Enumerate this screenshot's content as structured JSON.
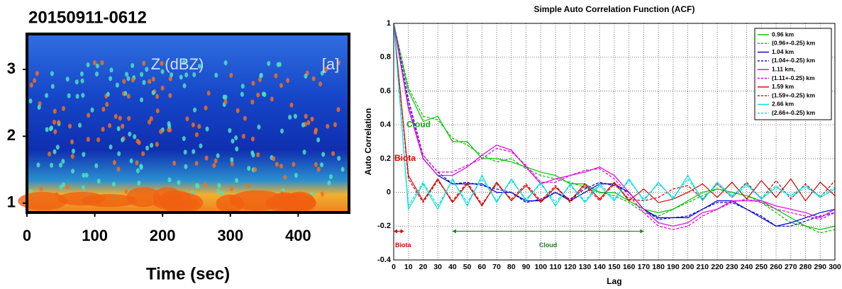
{
  "chart_data": [
    {
      "type": "image",
      "title": "20150911-0612",
      "xlabel": "Time (sec)",
      "annotations": [
        "Z (dBZ)",
        "[a]"
      ],
      "xlim": [
        0,
        475
      ],
      "xticks": [
        0,
        100,
        200,
        300,
        400
      ],
      "ylim": [
        0.86,
        3.53
      ],
      "yticks": [
        1,
        2,
        3
      ]
    },
    {
      "type": "line",
      "title": "Simple Auto Correlation Function (ACF)",
      "xlabel": "Lag",
      "ylabel": "Auto Correlation",
      "grid": true,
      "legend": "upper right",
      "annotations": [
        {
          "text": "Cloud",
          "color": "#20a020"
        },
        {
          "text": "Biota",
          "color": "#e00000"
        }
      ],
      "spans": [
        {
          "label": "Biota",
          "start": 0,
          "end": 7,
          "color": "#e00000"
        },
        {
          "label": "Cloud",
          "start": 40,
          "end": 170,
          "color": "#208020"
        }
      ],
      "xlim": [
        0,
        300
      ],
      "xticks": [
        0,
        10,
        20,
        30,
        40,
        50,
        60,
        70,
        80,
        90,
        100,
        110,
        120,
        130,
        140,
        150,
        160,
        170,
        180,
        190,
        200,
        210,
        220,
        230,
        240,
        250,
        260,
        270,
        280,
        290,
        300
      ],
      "ylim": [
        -0.4,
        1
      ],
      "yticks": [
        -0.4,
        -0.2,
        0,
        0.2,
        0.4,
        0.6,
        0.8,
        1
      ],
      "x": [
        0,
        10,
        20,
        30,
        40,
        50,
        60,
        70,
        80,
        90,
        100,
        110,
        120,
        130,
        140,
        150,
        160,
        170,
        180,
        190,
        200,
        210,
        220,
        230,
        240,
        250,
        260,
        270,
        280,
        290,
        300
      ],
      "series": [
        {
          "name": "0.96 km",
          "color": "#00c000",
          "dashed": false,
          "values": [
            1,
            0.6,
            0.42,
            0.45,
            0.3,
            0.3,
            0.2,
            0.2,
            0.18,
            0.15,
            0.12,
            0.1,
            0.05,
            0.05,
            0.0,
            0.0,
            -0.05,
            -0.1,
            -0.12,
            -0.1,
            -0.05,
            0.0,
            0.02,
            0.0,
            -0.02,
            -0.05,
            -0.1,
            -0.15,
            -0.2,
            -0.22,
            -0.2
          ]
        },
        {
          "name": "(0.96+-0.25) km",
          "color": "#00c000",
          "dashed": true,
          "values": [
            1,
            0.62,
            0.45,
            0.43,
            0.32,
            0.28,
            0.22,
            0.18,
            0.2,
            0.14,
            0.1,
            0.08,
            0.06,
            0.03,
            0.0,
            -0.02,
            -0.06,
            -0.12,
            -0.14,
            -0.1,
            -0.06,
            -0.02,
            0.02,
            0.0,
            -0.02,
            -0.06,
            -0.12,
            -0.18,
            -0.2,
            -0.24,
            -0.22
          ]
        },
        {
          "name": "1.04 km",
          "color": "#0000d0",
          "dashed": false,
          "values": [
            1,
            0.5,
            0.2,
            0.1,
            0.05,
            0.05,
            0.05,
            0.0,
            0.0,
            -0.05,
            -0.05,
            0.0,
            -0.05,
            0.0,
            0.05,
            0.05,
            0.0,
            -0.1,
            -0.15,
            -0.15,
            -0.15,
            -0.1,
            -0.05,
            -0.05,
            -0.1,
            -0.15,
            -0.2,
            -0.18,
            -0.15,
            -0.12,
            -0.1
          ]
        },
        {
          "name": "(1.04+-0.25) km",
          "color": "#0000d0",
          "dashed": true,
          "values": [
            1,
            0.55,
            0.22,
            0.12,
            0.05,
            0.06,
            0.04,
            0.02,
            0.0,
            -0.06,
            -0.04,
            0.0,
            -0.04,
            0.02,
            0.06,
            0.04,
            0.0,
            -0.1,
            -0.16,
            -0.15,
            -0.14,
            -0.1,
            -0.06,
            -0.06,
            -0.1,
            -0.14,
            -0.2,
            -0.2,
            -0.17,
            -0.14,
            -0.12
          ]
        },
        {
          "name": "1.11 km,",
          "color": "#e000e0",
          "dashed": false,
          "values": [
            1,
            0.5,
            0.2,
            0.1,
            0.1,
            0.15,
            0.22,
            0.28,
            0.25,
            0.15,
            0.05,
            0.08,
            0.1,
            0.12,
            0.15,
            0.1,
            0.0,
            -0.1,
            -0.18,
            -0.2,
            -0.18,
            -0.12,
            -0.1,
            -0.05,
            -0.05,
            -0.05,
            -0.08,
            -0.1,
            -0.12,
            -0.15,
            -0.1
          ]
        },
        {
          "name": "(1.11+-0.25) km",
          "color": "#e000e0",
          "dashed": true,
          "values": [
            1,
            0.52,
            0.22,
            0.12,
            0.12,
            0.16,
            0.2,
            0.26,
            0.24,
            0.16,
            0.06,
            0.06,
            0.1,
            0.13,
            0.14,
            0.08,
            -0.02,
            -0.12,
            -0.2,
            -0.22,
            -0.2,
            -0.14,
            -0.1,
            -0.06,
            -0.04,
            -0.06,
            -0.1,
            -0.12,
            -0.14,
            -0.16,
            -0.12
          ]
        },
        {
          "name": "1.59 km",
          "color": "#d00000",
          "dashed": false,
          "values": [
            1,
            0.1,
            -0.05,
            0.08,
            -0.06,
            0.05,
            -0.08,
            0.06,
            -0.05,
            0.04,
            -0.06,
            0.03,
            -0.05,
            0.05,
            -0.04,
            0.06,
            -0.05,
            0.02,
            -0.06,
            -0.04,
            0.0,
            0.05,
            -0.03,
            0.06,
            -0.04,
            0.07,
            -0.03,
            0.08,
            -0.05,
            0.06,
            -0.02
          ]
        },
        {
          "name": "(1.59+-0.25) km",
          "color": "#d00000",
          "dashed": true,
          "values": [
            1,
            0.08,
            -0.06,
            0.07,
            -0.05,
            0.06,
            -0.07,
            0.05,
            -0.04,
            0.05,
            -0.05,
            0.04,
            -0.06,
            0.04,
            -0.05,
            0.05,
            -0.04,
            -0.05,
            -0.03,
            0.02,
            0.04,
            -0.04,
            0.05,
            -0.03,
            0.06,
            -0.04,
            0.07,
            -0.04,
            0.05,
            -0.03,
            0.07
          ]
        },
        {
          "name": "2.66 km",
          "color": "#00e0e0",
          "dashed": false,
          "values": [
            1,
            -0.1,
            0.05,
            -0.1,
            0.08,
            -0.08,
            0.1,
            -0.06,
            0.08,
            -0.05,
            0.06,
            -0.08,
            0.05,
            -0.06,
            0.04,
            -0.05,
            0.08,
            -0.05,
            0.06,
            -0.04,
            0.1,
            -0.05,
            0.06,
            -0.02,
            0.05,
            -0.04,
            0.03,
            -0.02,
            0.04,
            -0.03,
            0.02
          ]
        },
        {
          "name": "(2.66+-0.25) km",
          "color": "#00e0e0",
          "dashed": true,
          "values": [
            1,
            -0.08,
            0.06,
            -0.08,
            0.07,
            -0.06,
            0.08,
            -0.05,
            0.07,
            -0.04,
            0.05,
            -0.06,
            0.04,
            -0.05,
            0.05,
            -0.04,
            0.07,
            -0.04,
            0.05,
            -0.03,
            0.08,
            -0.04,
            0.05,
            -0.03,
            0.04,
            -0.03,
            0.04,
            -0.03,
            0.03,
            -0.02,
            0.03
          ]
        }
      ]
    }
  ]
}
